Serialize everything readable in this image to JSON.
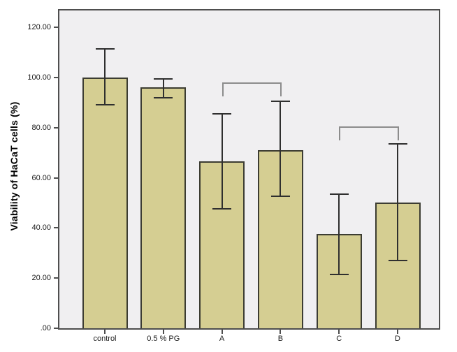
{
  "figure": {
    "ylabel": "Viability of HaCaT cells (%)"
  },
  "chart_data": {
    "type": "bar",
    "title": "",
    "xlabel": "",
    "ylabel": "Viability of HaCaT cells (%)",
    "categories": [
      "control",
      "0.5 % PG",
      "A",
      "B",
      "C",
      "D"
    ],
    "values": [
      100,
      96,
      66.5,
      71,
      37.5,
      50
    ],
    "error_low": [
      89,
      92,
      47.5,
      52.5,
      21.5,
      27
    ],
    "error_high": [
      111.5,
      99.5,
      85.5,
      90.5,
      53.5,
      73.5
    ],
    "ylim": [
      0,
      120
    ],
    "yticks": [
      0,
      20,
      40,
      60,
      80,
      100,
      120
    ],
    "ytick_labels": [
      ".00",
      "20.00",
      "40.00",
      "60.00",
      "80.00",
      "100.00",
      "120.00"
    ],
    "grid": false,
    "legend": false,
    "significance_brackets": [
      {
        "from": "A",
        "to": "B",
        "y": 98
      },
      {
        "from": "C",
        "to": "D",
        "y": 80.5
      }
    ],
    "colors": {
      "bar_fill": "#d5ce92",
      "bar_border": "#3c3c32",
      "error_bar": "#2f2f2f",
      "bracket": "#8c8c8c",
      "plot_background": "#f0eff1",
      "frame": "#4e4e4e",
      "outer_background": "#ffffff"
    }
  }
}
